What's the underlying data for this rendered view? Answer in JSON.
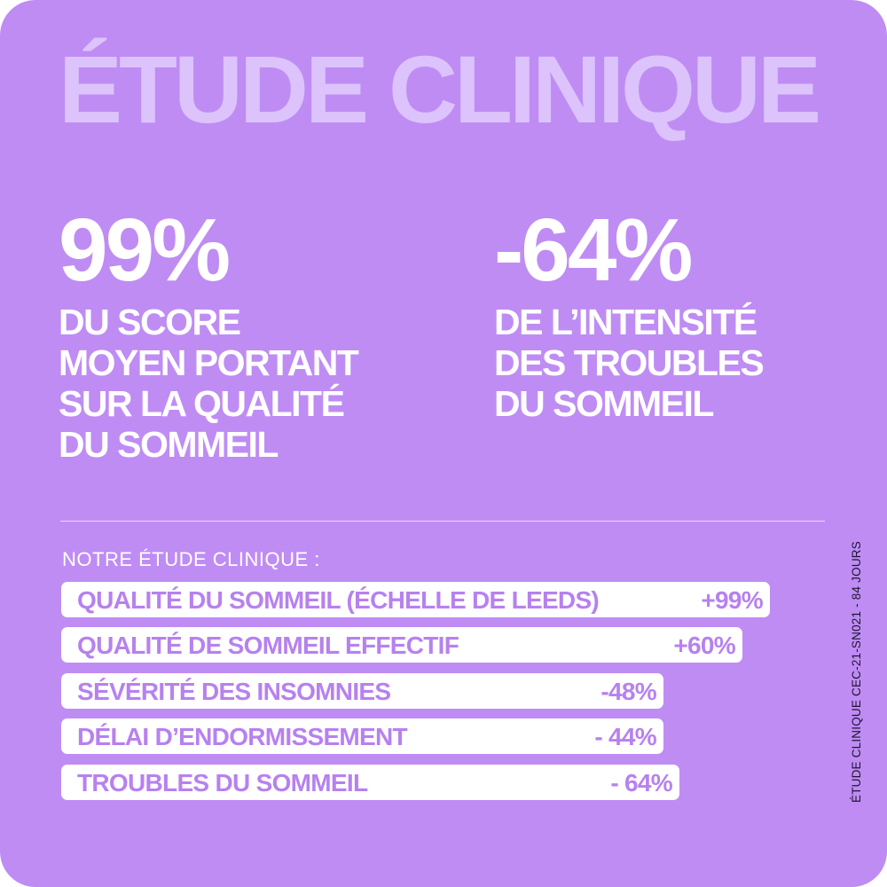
{
  "title": "ÉTUDE CLINIQUE",
  "stats": [
    {
      "value": "99%",
      "description": "DU SCORE\nMOYEN PORTANT\nSUR LA QUALITÉ\nDU SOMMEIL"
    },
    {
      "value": "-64%",
      "description": "DE L’INTENSITÉ\nDES TROUBLES\nDU SOMMEIL"
    }
  ],
  "study_label": "NOTRE ÉTUDE CLINIQUE :",
  "results": [
    {
      "label": "QUALITÉ DU SOMMEIL (ÉCHELLE DE LEEDS)",
      "value": "+99%"
    },
    {
      "label": "QUALITÉ DE SOMMEIL EFFECTIF",
      "value": "+60%"
    },
    {
      "label": "SÉVÉRITÉ DES INSOMNIES",
      "value": "-48%"
    },
    {
      "label": "DÉLAI D’ENDORMISSEMENT",
      "value": "- 44%"
    },
    {
      "label": "TROUBLES DU SOMMEIL",
      "value": "- 64%"
    }
  ],
  "side_note": "ÉTUDE CLINIQUE CEC-21-SN021 - 84 JOURS",
  "colors": {
    "background": "#bf8cf4",
    "title": "#dcc3fb",
    "bar": "#ffffff",
    "bar_text": "#b781ef"
  }
}
